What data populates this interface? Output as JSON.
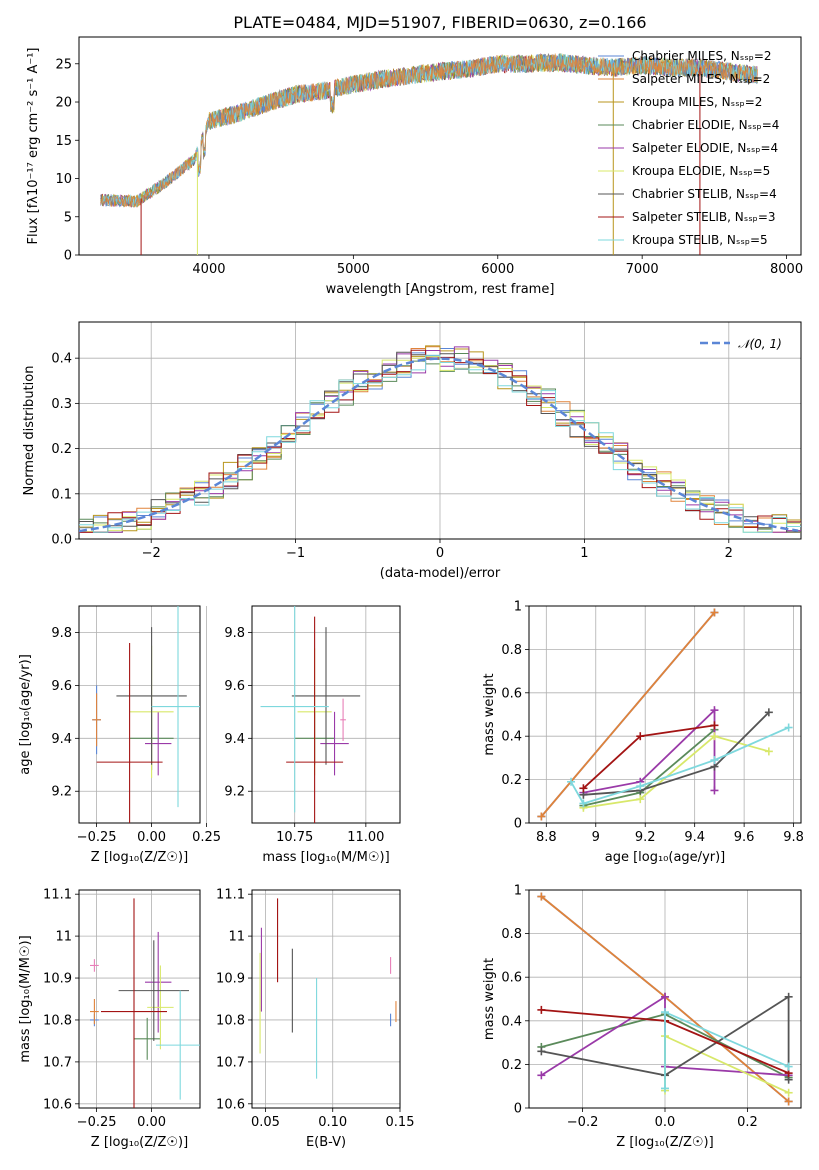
{
  "colors": [
    "#5b86d6",
    "#e0833a",
    "#b8951c",
    "#5a8a5a",
    "#9a3aa8",
    "#d8e86a",
    "#555555",
    "#a31414",
    "#7ed8dd"
  ],
  "chart_data": [
    {
      "id": "spectrum",
      "type": "line",
      "title": "PLATE=0484, MJD=51907, FIBERID=0630, z=0.166",
      "xlabel": "wavelength [Angstrom, rest frame]",
      "ylabel": "Flux [fλ10⁻¹⁷ erg cm⁻² s⁻¹ A⁻¹]",
      "xlim": [
        3100,
        8100
      ],
      "ylim": [
        0,
        28.5
      ],
      "xticks": [
        4000,
        5000,
        6000,
        7000,
        8000
      ],
      "yticks": [
        0,
        5,
        10,
        15,
        20,
        25
      ],
      "grid": false,
      "legend_position": "right",
      "legend": [
        "Chabrier MILES, Nₛₛₚ=2",
        "Salpeter MILES, Nₛₛₚ=2",
        "Kroupa MILES, Nₛₛₚ=2",
        "Chabrier ELODIE, Nₛₛₚ=4",
        "Salpeter ELODIE, Nₛₛₚ=4",
        "Kroupa ELODIE, Nₛₛₚ=5",
        "Chabrier STELIB, Nₛₛₚ=4",
        "Salpeter STELIB, Nₛₛₚ=3",
        "Kroupa STELIB, Nₛₛₚ=5"
      ],
      "continuum": {
        "x": [
          3250,
          3500,
          3700,
          3900,
          4000,
          4200,
          4400,
          4600,
          4800,
          5000,
          5200,
          5400,
          5600,
          5800,
          6000,
          6200,
          6400,
          6600,
          6800,
          7000,
          7200,
          7400,
          7600,
          7800
        ],
        "y": [
          7.2,
          7.0,
          9.5,
          12.5,
          17.5,
          18.5,
          19.8,
          21.0,
          21.5,
          22.3,
          23.0,
          23.5,
          24.0,
          24.3,
          25.0,
          25.0,
          25.2,
          24.8,
          24.5,
          24.8,
          24.5,
          24.5,
          24.0,
          23.5
        ]
      }
    },
    {
      "id": "residuals",
      "type": "step",
      "xlabel": "(data-model)/error",
      "ylabel": "Normed distribution",
      "xlim": [
        -2.5,
        2.5
      ],
      "ylim": [
        0,
        0.48
      ],
      "xticks": [
        -2,
        -1,
        0,
        1,
        2
      ],
      "yticks": [
        0.0,
        0.1,
        0.2,
        0.3,
        0.4
      ],
      "grid": true,
      "legend_position": "upper right",
      "reference_curve": {
        "name": "𝒩(0, 1)",
        "color": "#5b86d6"
      }
    },
    {
      "id": "z-age",
      "type": "errorbar",
      "xlabel": "Z [log₁₀(Z/Z☉)]",
      "ylabel": "age  [log₁₀(age/yr)]",
      "xlim": [
        -0.33,
        0.22
      ],
      "ylim": [
        9.08,
        9.9
      ],
      "xticks": [
        -0.25,
        0.0,
        0.25
      ],
      "xticklabels": [
        "−0.25",
        "0.00",
        "0.25"
      ],
      "yticks": [
        9.2,
        9.4,
        9.6,
        9.8
      ],
      "grid": true,
      "points": [
        {
          "x": -0.25,
          "y": 9.47,
          "xerr": 0.02,
          "yerr": 0.13,
          "color": "#5b86d6"
        },
        {
          "x": -0.25,
          "y": 9.47,
          "xerr": 0.02,
          "yerr": 0.1,
          "color": "#e0833a"
        },
        {
          "x": 0.0,
          "y": 9.4,
          "xerr": 0.1,
          "yerr": 0.12,
          "color": "#5a8a5a"
        },
        {
          "x": 0.03,
          "y": 9.38,
          "xerr": 0.06,
          "yerr": 0.12,
          "color": "#9a3aa8"
        },
        {
          "x": 0.0,
          "y": 9.5,
          "xerr": 0.1,
          "yerr": 0.25,
          "color": "#d8e86a"
        },
        {
          "x": 0.0,
          "y": 9.56,
          "xerr": 0.16,
          "yerr": 0.26,
          "color": "#555555"
        },
        {
          "x": -0.1,
          "y": 9.31,
          "xerr": 0.15,
          "yerr": 0.45,
          "color": "#a31414"
        },
        {
          "x": 0.12,
          "y": 9.52,
          "xerr": 0.12,
          "yerr": 0.38,
          "color": "#7ed8dd"
        }
      ]
    },
    {
      "id": "mass-age",
      "type": "errorbar",
      "xlabel": "mass [log₁₀(M/M☉)]",
      "xlim": [
        10.6,
        11.12
      ],
      "ylim": [
        9.08,
        9.9
      ],
      "xticks": [
        10.75,
        11.0
      ],
      "xticklabels": [
        "10.75",
        "11.00"
      ],
      "yticks": [
        9.2,
        9.4,
        9.6,
        9.8
      ],
      "grid": true,
      "points": [
        {
          "x": 10.92,
          "y": 9.47,
          "xerr": 0.01,
          "yerr": 0.08,
          "color": "#e87fb8"
        },
        {
          "x": 10.82,
          "y": 9.4,
          "xerr": 0.07,
          "yerr": 0.1,
          "color": "#5a8a5a"
        },
        {
          "x": 10.89,
          "y": 9.38,
          "xerr": 0.05,
          "yerr": 0.12,
          "color": "#9a3aa8"
        },
        {
          "x": 10.82,
          "y": 9.5,
          "xerr": 0.06,
          "yerr": 0.24,
          "color": "#d8e86a"
        },
        {
          "x": 10.86,
          "y": 9.56,
          "xerr": 0.12,
          "yerr": 0.26,
          "color": "#555555"
        },
        {
          "x": 10.82,
          "y": 9.31,
          "xerr": 0.1,
          "yerr": 0.55,
          "color": "#a31414"
        },
        {
          "x": 10.75,
          "y": 9.52,
          "xerr": 0.12,
          "yerr": 0.4,
          "color": "#7ed8dd"
        }
      ]
    },
    {
      "id": "age-weight",
      "type": "line",
      "xlabel": "age  [log₁₀(age/yr)]",
      "ylabel": "mass weight",
      "xlim": [
        8.73,
        9.83
      ],
      "ylim": [
        0,
        1.0
      ],
      "xticks": [
        8.8,
        9.0,
        9.2,
        9.4,
        9.6,
        9.8
      ],
      "yticks": [
        0.0,
        0.2,
        0.4,
        0.6,
        0.8,
        1.0
      ],
      "grid": true,
      "series": [
        {
          "color": "#5b86d6",
          "x": [
            8.78,
            9.48
          ],
          "y": [
            0.03,
            0.97
          ]
        },
        {
          "color": "#e0833a",
          "x": [
            8.78,
            9.48
          ],
          "y": [
            0.03,
            0.97
          ]
        },
        {
          "color": "#5a8a5a",
          "x": [
            8.95,
            9.18,
            9.48
          ],
          "y": [
            0.08,
            0.14,
            0.43
          ]
        },
        {
          "color": "#9a3aa8",
          "x": [
            8.95,
            9.18,
            9.48,
            9.48
          ],
          "y": [
            0.14,
            0.19,
            0.52,
            0.15
          ]
        },
        {
          "color": "#d8e86a",
          "x": [
            8.95,
            9.18,
            9.48,
            9.7
          ],
          "y": [
            0.07,
            0.11,
            0.4,
            0.33
          ]
        },
        {
          "color": "#555555",
          "x": [
            8.95,
            9.18,
            9.48,
            9.7
          ],
          "y": [
            0.13,
            0.15,
            0.26,
            0.51
          ]
        },
        {
          "color": "#a31414",
          "x": [
            8.95,
            9.18,
            9.48
          ],
          "y": [
            0.16,
            0.4,
            0.45
          ]
        },
        {
          "color": "#7ed8dd",
          "x": [
            8.9,
            8.95,
            9.18,
            9.48,
            9.78
          ],
          "y": [
            0.19,
            0.09,
            0.17,
            0.29,
            0.44
          ]
        }
      ]
    },
    {
      "id": "z-mass",
      "type": "errorbar",
      "xlabel": "Z [log₁₀(Z/Z☉)]",
      "ylabel": "mass [log₁₀(M/M☉)]",
      "xlim": [
        -0.33,
        0.22
      ],
      "ylim": [
        10.59,
        11.11
      ],
      "xticks": [
        -0.25,
        0.0
      ],
      "xticklabels": [
        "−0.25",
        "0.00"
      ],
      "yticks": [
        10.6,
        10.7,
        10.8,
        10.9,
        11.0,
        11.1
      ],
      "grid": true,
      "points": [
        {
          "x": -0.26,
          "y": 10.93,
          "xerr": 0.02,
          "yerr": 0.015,
          "color": "#e87fb8"
        },
        {
          "x": -0.26,
          "y": 10.8,
          "xerr": 0.02,
          "yerr": 0.015,
          "color": "#5b86d6"
        },
        {
          "x": -0.26,
          "y": 10.82,
          "xerr": 0.02,
          "yerr": 0.03,
          "color": "#e0833a"
        },
        {
          "x": -0.02,
          "y": 10.755,
          "xerr": 0.06,
          "yerr": 0.05,
          "color": "#5a8a5a"
        },
        {
          "x": 0.03,
          "y": 10.89,
          "xerr": 0.06,
          "yerr": 0.12,
          "color": "#9a3aa8"
        },
        {
          "x": 0.04,
          "y": 10.83,
          "xerr": 0.06,
          "yerr": 0.1,
          "color": "#d8e86a"
        },
        {
          "x": 0.01,
          "y": 10.87,
          "xerr": 0.16,
          "yerr": 0.12,
          "color": "#555555"
        },
        {
          "x": -0.08,
          "y": 10.82,
          "xerr": 0.15,
          "yerr": 0.27,
          "color": "#a31414"
        },
        {
          "x": 0.13,
          "y": 10.74,
          "xerr": 0.11,
          "yerr": 0.13,
          "color": "#7ed8dd"
        }
      ]
    },
    {
      "id": "ebv-mass",
      "type": "errorbar",
      "xlabel": "E(B-V)",
      "xlim": [
        0.04,
        0.15
      ],
      "ylim": [
        10.59,
        11.11
      ],
      "xticks": [
        0.05,
        0.1,
        0.15
      ],
      "xticklabels": [
        "0.05",
        "0.10",
        "0.15"
      ],
      "yticks": [
        10.6,
        10.7,
        10.8,
        10.9,
        11.0,
        11.1
      ],
      "grid": true,
      "points": [
        {
          "x": 0.047,
          "y": 10.92,
          "xerr": 0,
          "yerr": 0.1,
          "color": "#9a3aa8"
        },
        {
          "x": 0.046,
          "y": 10.84,
          "xerr": 0,
          "yerr": 0.12,
          "color": "#d8e86a"
        },
        {
          "x": 0.059,
          "y": 10.99,
          "xerr": 0,
          "yerr": 0.1,
          "color": "#a31414"
        },
        {
          "x": 0.07,
          "y": 10.87,
          "xerr": 0,
          "yerr": 0.1,
          "color": "#555555"
        },
        {
          "x": 0.088,
          "y": 10.78,
          "xerr": 0,
          "yerr": 0.12,
          "color": "#7ed8dd"
        },
        {
          "x": 0.143,
          "y": 10.93,
          "xerr": 0,
          "yerr": 0.02,
          "color": "#e87fb8"
        },
        {
          "x": 0.143,
          "y": 10.8,
          "xerr": 0,
          "yerr": 0.015,
          "color": "#5b86d6"
        },
        {
          "x": 0.147,
          "y": 10.82,
          "xerr": 0,
          "yerr": 0.025,
          "color": "#e0833a"
        }
      ]
    },
    {
      "id": "z-weight",
      "type": "line",
      "xlabel": "Z [log₁₀(Z/Z☉)]",
      "ylabel": "mass weight",
      "xlim": [
        -0.33,
        0.33
      ],
      "ylim": [
        0,
        1.0
      ],
      "xticks": [
        -0.2,
        0.0,
        0.2
      ],
      "xticklabels": [
        "−0.2",
        "0.0",
        "0.2"
      ],
      "yticks": [
        0.0,
        0.2,
        0.4,
        0.6,
        0.8,
        1.0
      ],
      "grid": true,
      "series": [
        {
          "color": "#5b86d6",
          "x": [
            -0.3,
            0.0,
            0.3
          ],
          "y": [
            0.97,
            0.51,
            0.03
          ]
        },
        {
          "color": "#e0833a",
          "x": [
            -0.3,
            0.0,
            0.3
          ],
          "y": [
            0.97,
            0.51,
            0.03
          ]
        },
        {
          "color": "#5a8a5a",
          "x": [
            -0.3,
            0.0,
            0.3
          ],
          "y": [
            0.28,
            0.43,
            0.14
          ]
        },
        {
          "color": "#9a3aa8",
          "x": [
            -0.3,
            0.0,
            0.0,
            0.3
          ],
          "y": [
            0.15,
            0.51,
            0.19,
            0.15
          ]
        },
        {
          "color": "#d8e86a",
          "x": [
            0.0,
            0.0,
            0.3
          ],
          "y": [
            0.08,
            0.33,
            0.07
          ]
        },
        {
          "color": "#555555",
          "x": [
            -0.3,
            0.0,
            0.3,
            0.3
          ],
          "y": [
            0.26,
            0.15,
            0.51,
            0.13
          ]
        },
        {
          "color": "#a31414",
          "x": [
            -0.3,
            0.0,
            0.3
          ],
          "y": [
            0.45,
            0.4,
            0.16
          ]
        },
        {
          "color": "#7ed8dd",
          "x": [
            0.0,
            0.0,
            0.3
          ],
          "y": [
            0.09,
            0.44,
            0.19
          ]
        }
      ]
    }
  ]
}
